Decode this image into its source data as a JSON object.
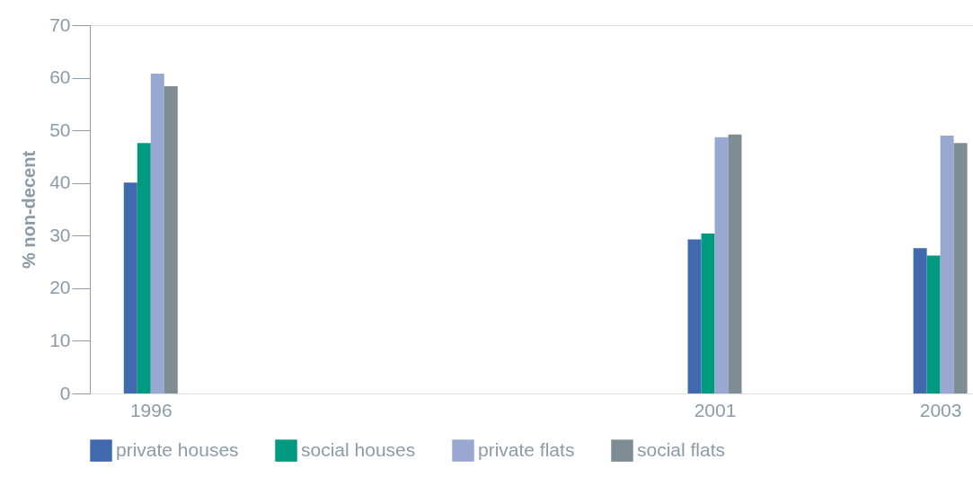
{
  "chart_data": {
    "type": "bar",
    "ylabel": "% non-decent",
    "x": [
      1996,
      2001,
      2003
    ],
    "xlim": [
      1995.5,
      2003.25
    ],
    "xticks": [
      1996,
      2001,
      2003
    ],
    "ylim": [
      0,
      70
    ],
    "yticks": [
      0,
      10,
      20,
      30,
      40,
      50,
      60,
      70
    ],
    "grid": false,
    "legend": "bottom",
    "series": [
      {
        "name": "private houses",
        "color": "#4169ad",
        "values": [
          40.1,
          29.3,
          27.6
        ]
      },
      {
        "name": "social houses",
        "color": "#009a80",
        "values": [
          47.6,
          30.4,
          26.2
        ]
      },
      {
        "name": "private flats",
        "color": "#98a8d0",
        "values": [
          60.8,
          48.7,
          49.0
        ]
      },
      {
        "name": "social flats",
        "color": "#7e8c94",
        "values": [
          58.4,
          49.2,
          47.6
        ]
      }
    ]
  }
}
